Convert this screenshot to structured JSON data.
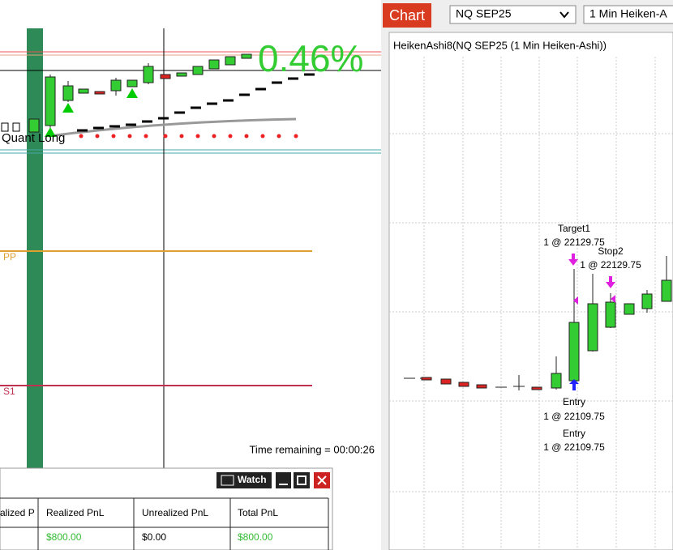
{
  "left_chart": {
    "percent": "0.46%",
    "strategy_label": "Quant Long",
    "pivot_pp": "PP",
    "pivot_s1": "S1",
    "time_remaining": "Time remaining = 00:00:26"
  },
  "account_panel": {
    "watch_button": "Watch",
    "table": {
      "headers": [
        "alized P",
        "Realized PnL",
        "Unrealized PnL",
        "Total PnL"
      ],
      "rows": [
        [
          "$800.00",
          "$0.00",
          "$800.00"
        ]
      ]
    }
  },
  "right_chart": {
    "tab": "Chart",
    "instrument": "NQ SEP25",
    "interval": "1 Min Heiken-A",
    "title": "HeikenAshi8(NQ SEP25 (1 Min Heiken-Ashi))",
    "orders": [
      {
        "name": "Target1",
        "detail": "1 @ 22129.75"
      },
      {
        "name": "Stop2",
        "detail": "1 @ 22129.75"
      },
      {
        "name": "Entry",
        "detail": "1 @ 22109.75"
      },
      {
        "name": "Entry",
        "detail": "1 @ 22109.75"
      }
    ]
  }
}
